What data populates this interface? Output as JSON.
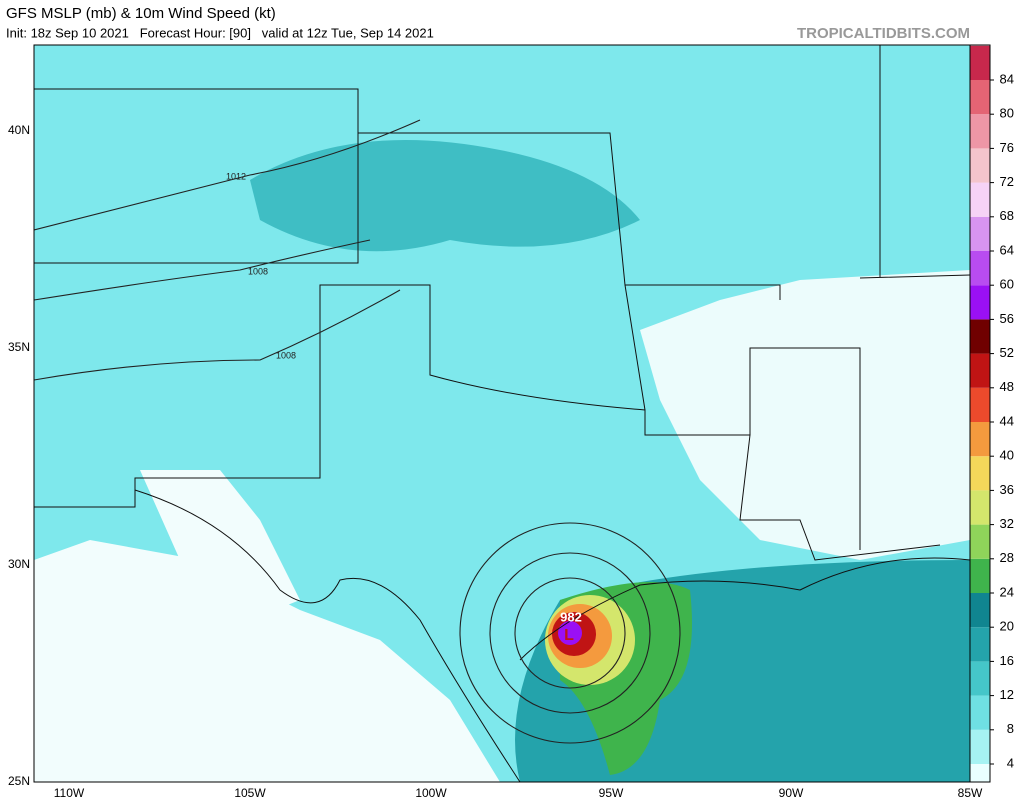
{
  "header": {
    "title": "GFS MSLP (mb) & 10m Wind Speed (kt)",
    "subtitle": "Init: 18z Sep 10 2021   Forecast Hour: [90]   valid at 12z Tue, Sep 14 2021",
    "site": "TROPICALTIDBITS.COM"
  },
  "map": {
    "lon_labels": [
      "110W",
      "105W",
      "100W",
      "95W",
      "90W",
      "85W"
    ],
    "lat_labels": [
      "40N",
      "35N",
      "30N",
      "25N"
    ],
    "isobar_labels": [
      "1012",
      "1008",
      "1008",
      "982"
    ],
    "low_marker": "L"
  },
  "colorbar": {
    "labels": [
      4,
      8,
      12,
      16,
      20,
      24,
      28,
      32,
      36,
      40,
      44,
      48,
      52,
      56,
      60,
      64,
      68,
      72,
      76,
      80,
      84
    ],
    "colors": [
      "#eaffff",
      "#a6f3f3",
      "#6fe0e3",
      "#45c6c9",
      "#24a3ab",
      "#108590",
      "#3fb44c",
      "#8fd45a",
      "#d4e66c",
      "#f4d85a",
      "#f49a3e",
      "#ec4a2c",
      "#c01414",
      "#700000",
      "#9a10f4",
      "#b84cf0",
      "#d894f0",
      "#f6d2f6",
      "#f4c4cc",
      "#ee96a6",
      "#e46474",
      "#c8284c"
    ]
  }
}
